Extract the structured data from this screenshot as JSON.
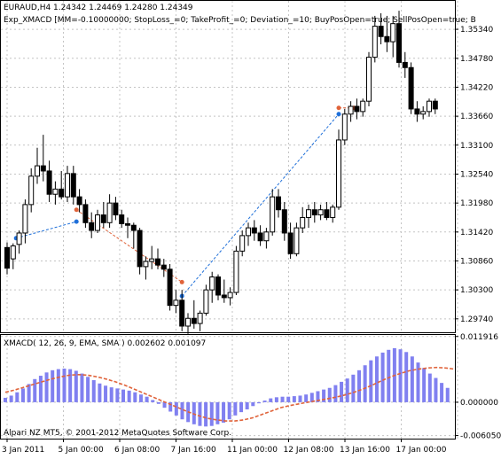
{
  "window": {
    "symbol_line": "EURAUD,H4  1.24342 1.24469 1.24280 1.24349",
    "expert_line": "Exp_XMACD [MM=-0.10000000; StopLoss_=0; TakeProfit_=0; Deviation_=10; BuyPosOpen=true; SellPosOpen=true; B",
    "copyright": "Alpari NZ MT5, © 2001-2012 MetaQuotes Software Corp."
  },
  "chart_data": [
    {
      "type": "candlestick",
      "panel": "price",
      "ylim": [
        1.2948,
        1.3589
      ],
      "yticks": [
        "1.35340",
        "1.34780",
        "1.34220",
        "1.33660",
        "1.33100",
        "1.32540",
        "1.31980",
        "1.31420",
        "1.30860",
        "1.30300",
        "1.29740"
      ],
      "grid": true,
      "bullish_color": "#ffffff",
      "bearish_color": "#000000",
      "candles": [
        [
          1.3112,
          1.3122,
          1.306,
          1.3072
        ],
        [
          1.309,
          1.312,
          1.307,
          1.3115
        ],
        [
          1.3118,
          1.3145,
          1.31,
          1.314
        ],
        [
          1.314,
          1.3205,
          1.312,
          1.3195
        ],
        [
          1.3195,
          1.3265,
          1.318,
          1.325
        ],
        [
          1.325,
          1.3305,
          1.3235,
          1.327
        ],
        [
          1.327,
          1.333,
          1.324,
          1.326
        ],
        [
          1.326,
          1.328,
          1.32,
          1.3215
        ],
        [
          1.3215,
          1.324,
          1.3195,
          1.3225
        ],
        [
          1.3225,
          1.326,
          1.3205,
          1.321
        ],
        [
          1.321,
          1.327,
          1.32,
          1.3255
        ],
        [
          1.3255,
          1.327,
          1.3195,
          1.321
        ],
        [
          1.321,
          1.3225,
          1.318,
          1.3195
        ],
        [
          1.3195,
          1.3205,
          1.315,
          1.316
        ],
        [
          1.316,
          1.318,
          1.313,
          1.3145
        ],
        [
          1.3145,
          1.3185,
          1.314,
          1.3175
        ],
        [
          1.3175,
          1.32,
          1.315,
          1.316
        ],
        [
          1.316,
          1.3215,
          1.315,
          1.3198
        ],
        [
          1.3198,
          1.321,
          1.3165,
          1.3175
        ],
        [
          1.3175,
          1.3185,
          1.315,
          1.3158
        ],
        [
          1.3158,
          1.317,
          1.313,
          1.3155
        ],
        [
          1.3155,
          1.316,
          1.311,
          1.3145
        ],
        [
          1.3145,
          1.315,
          1.306,
          1.3075
        ],
        [
          1.3075,
          1.3095,
          1.305,
          1.3085
        ],
        [
          1.3085,
          1.3115,
          1.307,
          1.309
        ],
        [
          1.309,
          1.311,
          1.307,
          1.3078
        ],
        [
          1.3078,
          1.309,
          1.3055,
          1.307
        ],
        [
          1.307,
          1.308,
          1.299,
          1.3
        ],
        [
          1.3,
          1.303,
          1.2985,
          1.301
        ],
        [
          1.301,
          1.303,
          1.295,
          1.296
        ],
        [
          1.296,
          1.2985,
          1.2945,
          1.2975
        ],
        [
          1.2975,
          1.301,
          1.2955,
          1.2965
        ],
        [
          1.2965,
          1.299,
          1.295,
          1.2985
        ],
        [
          1.2985,
          1.304,
          1.298,
          1.303
        ],
        [
          1.303,
          1.3065,
          1.3005,
          1.3055
        ],
        [
          1.3055,
          1.306,
          1.301,
          1.302
        ],
        [
          1.302,
          1.305,
          1.3005,
          1.3015
        ],
        [
          1.3015,
          1.3035,
          1.3,
          1.3025
        ],
        [
          1.3025,
          1.3115,
          1.302,
          1.3105
        ],
        [
          1.3105,
          1.3145,
          1.3095,
          1.3135
        ],
        [
          1.3135,
          1.316,
          1.3115,
          1.315
        ],
        [
          1.315,
          1.3165,
          1.3125,
          1.314
        ],
        [
          1.314,
          1.3155,
          1.3115,
          1.3125
        ],
        [
          1.3125,
          1.315,
          1.311,
          1.3142
        ],
        [
          1.3142,
          1.3225,
          1.3135,
          1.321
        ],
        [
          1.321,
          1.3225,
          1.317,
          1.3185
        ],
        [
          1.3185,
          1.32,
          1.3125,
          1.314
        ],
        [
          1.314,
          1.316,
          1.309,
          1.31
        ],
        [
          1.31,
          1.316,
          1.3095,
          1.315
        ],
        [
          1.315,
          1.319,
          1.314,
          1.317
        ],
        [
          1.317,
          1.3195,
          1.315,
          1.3185
        ],
        [
          1.3185,
          1.32,
          1.316,
          1.3175
        ],
        [
          1.3175,
          1.3195,
          1.3165,
          1.3185
        ],
        [
          1.3185,
          1.32,
          1.3165,
          1.317
        ],
        [
          1.317,
          1.3195,
          1.316,
          1.319
        ],
        [
          1.319,
          1.334,
          1.3185,
          1.332
        ],
        [
          1.332,
          1.338,
          1.331,
          1.337
        ],
        [
          1.337,
          1.3395,
          1.3355,
          1.3385
        ],
        [
          1.3385,
          1.34,
          1.336,
          1.3375
        ],
        [
          1.3375,
          1.34,
          1.3365,
          1.3395
        ],
        [
          1.3395,
          1.349,
          1.3385,
          1.348
        ],
        [
          1.348,
          1.356,
          1.347,
          1.354
        ],
        [
          1.354,
          1.3565,
          1.3505,
          1.352
        ],
        [
          1.352,
          1.356,
          1.349,
          1.351
        ],
        [
          1.351,
          1.356,
          1.348,
          1.3545
        ],
        [
          1.3545,
          1.357,
          1.346,
          1.347
        ],
        [
          1.347,
          1.349,
          1.344,
          1.346
        ],
        [
          1.346,
          1.347,
          1.337,
          1.338
        ],
        [
          1.338,
          1.3395,
          1.3355,
          1.337
        ],
        [
          1.337,
          1.3385,
          1.336,
          1.3375
        ],
        [
          1.3375,
          1.34,
          1.3365,
          1.3395
        ],
        [
          1.3395,
          1.34,
          1.337,
          1.338
        ]
      ],
      "trades": [
        {
          "type": "buy",
          "from": {
            "i": 3,
            "price": 1.313
          },
          "to": {
            "i": 23,
            "price": 1.3162
          },
          "color": "#1e6fd9"
        },
        {
          "type": "sell",
          "from": {
            "i": 23,
            "price": 1.3185
          },
          "to": {
            "i": 58,
            "price": 1.3045
          },
          "color": "#e0633a"
        },
        {
          "type": "buy",
          "from": {
            "i": 58,
            "price": 1.3018
          },
          "to": {
            "i": 110,
            "price": 1.337
          },
          "color": "#1e6fd9"
        },
        {
          "type": "sell",
          "from": {
            "i": 110,
            "price": 1.3382
          },
          "to": {
            "i": 115,
            "price": 1.3382
          },
          "color": "#e0633a"
        }
      ]
    },
    {
      "type": "bar",
      "panel": "indicator",
      "title": "XMACD( 12, 26, 9, EMA, SMA ) 0.002602 0.001097",
      "ylim": [
        -0.0066,
        0.0122
      ],
      "yticks": [
        "0.011916",
        "0.000000",
        "-0.006050"
      ],
      "series": [
        {
          "kind": "histogram",
          "color": "#8080f0",
          "values": [
            0.0008,
            0.0012,
            0.0018,
            0.0025,
            0.0033,
            0.0042,
            0.0048,
            0.0054,
            0.0058,
            0.006,
            0.0061,
            0.006,
            0.0057,
            0.0052,
            0.0046,
            0.004,
            0.0034,
            0.003,
            0.0027,
            0.0025,
            0.0023,
            0.0021,
            0.0018,
            0.0014,
            0.001,
            0.0004,
            -0.0003,
            -0.001,
            -0.0017,
            -0.0024,
            -0.0031,
            -0.0036,
            -0.004,
            -0.0043,
            -0.0044,
            -0.0043,
            -0.004,
            -0.0037,
            -0.0031,
            -0.0024,
            -0.0018,
            -0.0013,
            -0.0007,
            -0.0002,
            0.0003,
            0.0007,
            0.0009,
            0.001,
            0.001,
            0.0011,
            0.0012,
            0.0014,
            0.0017,
            0.002,
            0.0023,
            0.0026,
            0.0031,
            0.0037,
            0.0043,
            0.005,
            0.0058,
            0.0067,
            0.0076,
            0.0083,
            0.009,
            0.0095,
            0.0098,
            0.0096,
            0.0091,
            0.0083,
            0.0072,
            0.0062,
            0.0052,
            0.0044,
            0.0035,
            0.0026
          ]
        },
        {
          "kind": "signal",
          "color": "#e0633a",
          "values": [
            0.0018,
            0.0022,
            0.0027,
            0.0032,
            0.0037,
            0.0042,
            0.0046,
            0.0049,
            0.005,
            0.0049,
            0.0046,
            0.0042,
            0.0037,
            0.0031,
            0.0024,
            0.0017,
            0.001,
            0.0003,
            -0.0004,
            -0.0011,
            -0.0018,
            -0.0024,
            -0.0029,
            -0.0032,
            -0.0034,
            -0.0034,
            -0.0032,
            -0.0028,
            -0.0022,
            -0.0016,
            -0.001,
            -0.0006,
            -0.0003,
            0.0,
            0.0003,
            0.0006,
            0.0009,
            0.0013,
            0.0018,
            0.0024,
            0.0031,
            0.0039,
            0.0046,
            0.0052,
            0.0057,
            0.006,
            0.0062,
            0.0063,
            0.0062,
            0.006
          ]
        }
      ],
      "x_labels": [
        "3 Jan 2011",
        "5 Jan 00:00",
        "6 Jan 08:00",
        "7 Jan 16:00",
        "11 Jan 00:00",
        "12 Jan 08:00",
        "13 Jan 16:00",
        "17 Jan 00:00"
      ]
    }
  ]
}
